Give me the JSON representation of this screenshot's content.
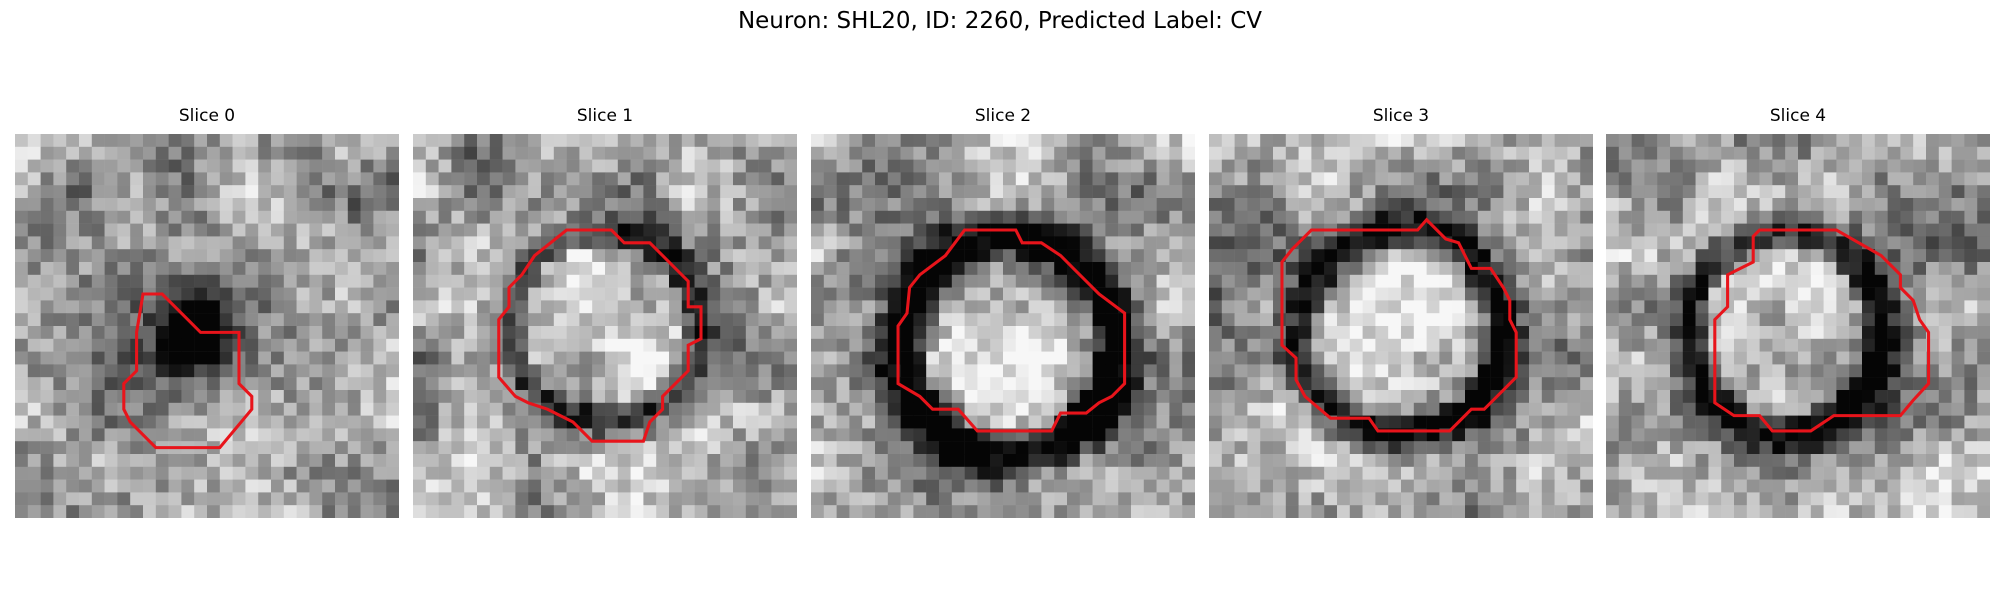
{
  "figure": {
    "title": "Neuron: SHL20, ID: 2260, Predicted Label: CV",
    "contour_color": "#e8141b",
    "panels": [
      {
        "title": "Slice 0",
        "seed": 11,
        "ring": "none",
        "cx": 15.5,
        "cy": 15.5,
        "rx": 5.5,
        "ry": 5.5,
        "blob": {
          "cx": 14.5,
          "cy": 16.0,
          "r": 3.4
        },
        "contour": [
          [
            10,
            12.5
          ],
          [
            11.5,
            12.5
          ],
          [
            12.5,
            13.5
          ],
          [
            13.5,
            14.5
          ],
          [
            14.5,
            15.5
          ],
          [
            17.5,
            15.5
          ],
          [
            17.5,
            19.5
          ],
          [
            18.5,
            20.5
          ],
          [
            18.5,
            21.5
          ],
          [
            16,
            24.5
          ],
          [
            11,
            24.5
          ],
          [
            9,
            22.5
          ],
          [
            8.5,
            21.5
          ],
          [
            8.5,
            19.5
          ],
          [
            9.5,
            18.5
          ],
          [
            9.5,
            15.5
          ]
        ]
      },
      {
        "title": "Slice 1",
        "seed": 23,
        "ring": "thin",
        "cx": 15.0,
        "cy": 15.0,
        "rx": 7.5,
        "ry": 7.5,
        "blob": null,
        "contour": [
          [
            12,
            7.5
          ],
          [
            15.5,
            7.5
          ],
          [
            16.5,
            8.5
          ],
          [
            18.5,
            8.5
          ],
          [
            19.5,
            9.5
          ],
          [
            20.5,
            10.5
          ],
          [
            21.5,
            11.5
          ],
          [
            21.5,
            13.5
          ],
          [
            22.5,
            13.5
          ],
          [
            22.5,
            16
          ],
          [
            21.5,
            16.5
          ],
          [
            21.5,
            18.5
          ],
          [
            19.5,
            20.5
          ],
          [
            19.5,
            21.5
          ],
          [
            18.5,
            22.5
          ],
          [
            18,
            24
          ],
          [
            14,
            24
          ],
          [
            12.5,
            22.5
          ],
          [
            10.5,
            21.5
          ],
          [
            9,
            21
          ],
          [
            8,
            20.5
          ],
          [
            6.7,
            19
          ],
          [
            6.7,
            14.5
          ],
          [
            7.5,
            13.5
          ],
          [
            7.5,
            12
          ],
          [
            8.5,
            11
          ],
          [
            9.5,
            9.5
          ]
        ]
      },
      {
        "title": "Slice 2",
        "seed": 37,
        "ring": "thick",
        "cx": 15.5,
        "cy": 16.5,
        "rx": 8.3,
        "ry": 8.5,
        "blob": null,
        "contour": [
          [
            12,
            7.5
          ],
          [
            16,
            7.5
          ],
          [
            16.5,
            8.5
          ],
          [
            18,
            8.5
          ],
          [
            19.5,
            9.5
          ],
          [
            20.5,
            10.5
          ],
          [
            21.5,
            11.5
          ],
          [
            22.5,
            12.5
          ],
          [
            24.5,
            14
          ],
          [
            24.5,
            19.5
          ],
          [
            23.5,
            20.5
          ],
          [
            22.5,
            21
          ],
          [
            21.5,
            21.8
          ],
          [
            19.5,
            21.8
          ],
          [
            18.8,
            23.2
          ],
          [
            13,
            23.2
          ],
          [
            11.5,
            21.5
          ],
          [
            9.5,
            21.5
          ],
          [
            8.5,
            20.5
          ],
          [
            6.8,
            19.5
          ],
          [
            6.8,
            15
          ],
          [
            7.5,
            14
          ],
          [
            7.7,
            12
          ],
          [
            8.5,
            11
          ],
          [
            10.5,
            9.5
          ]
        ]
      },
      {
        "title": "Slice 3",
        "seed": 53,
        "ring": "medium",
        "cx": 15.0,
        "cy": 15.5,
        "rx": 8.0,
        "ry": 8.0,
        "blob": null,
        "contour": [
          [
            8,
            7.5
          ],
          [
            16.3,
            7.5
          ],
          [
            17,
            6.7
          ],
          [
            18.5,
            8.2
          ],
          [
            19.5,
            8.5
          ],
          [
            20.5,
            10.5
          ],
          [
            22,
            10.5
          ],
          [
            23,
            12
          ],
          [
            23.5,
            13
          ],
          [
            23.5,
            14.5
          ],
          [
            24,
            15.5
          ],
          [
            24,
            19
          ],
          [
            22.5,
            20.5
          ],
          [
            21.5,
            21.5
          ],
          [
            20.5,
            21.5
          ],
          [
            19.5,
            22.5
          ],
          [
            18.8,
            23.2
          ],
          [
            13.2,
            23.2
          ],
          [
            12.5,
            22.2
          ],
          [
            9.5,
            22.2
          ],
          [
            7.5,
            20.5
          ],
          [
            6.8,
            19.2
          ],
          [
            6.8,
            17.5
          ],
          [
            5.7,
            16.5
          ],
          [
            5.7,
            10
          ],
          [
            6.5,
            9
          ]
        ]
      },
      {
        "title": "Slice 4",
        "seed": 71,
        "ring": "medium",
        "cx": 14.0,
        "cy": 15.5,
        "rx": 7.5,
        "ry": 8.0,
        "blob": null,
        "contour": [
          [
            12,
            7.5
          ],
          [
            18,
            7.5
          ],
          [
            21.5,
            9.5
          ],
          [
            22,
            10
          ],
          [
            23,
            11
          ],
          [
            23,
            12
          ],
          [
            24,
            13
          ],
          [
            24.5,
            14.5
          ],
          [
            25.2,
            15.5
          ],
          [
            25.2,
            19.5
          ],
          [
            24,
            20.8
          ],
          [
            23,
            22
          ],
          [
            17.8,
            22
          ],
          [
            16,
            23.2
          ],
          [
            13,
            23.2
          ],
          [
            12,
            22
          ],
          [
            10,
            22
          ],
          [
            8.5,
            21
          ],
          [
            8.5,
            14.5
          ],
          [
            9.5,
            13.5
          ],
          [
            9.5,
            11
          ],
          [
            10.5,
            10.5
          ],
          [
            11.5,
            10
          ],
          [
            11.5,
            8
          ]
        ]
      }
    ]
  }
}
